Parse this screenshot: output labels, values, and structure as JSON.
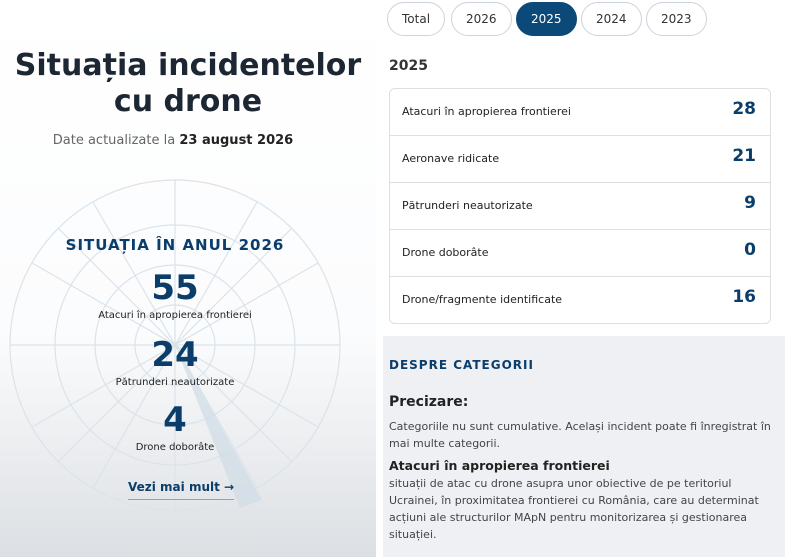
{
  "left": {
    "title": "Situația incidentelor cu drone",
    "updated_prefix": "Date actualizate la",
    "updated_date": "23 august 2026",
    "stats_heading": "SITUAȚIA ÎN ANUL 2026",
    "stats": [
      {
        "value": "55",
        "label": "Atacuri în apropierea frontierei"
      },
      {
        "value": "24",
        "label": "Pătrunderi neautorizate"
      },
      {
        "value": "4",
        "label": "Drone doborâte"
      }
    ],
    "more_link": "Vezi mai mult →"
  },
  "right": {
    "tabs": [
      "Total",
      "2026",
      "2025",
      "2024",
      "2023"
    ],
    "active_tab": "2025",
    "year_heading": "2025",
    "table": {
      "rows": [
        [
          "Atacuri în apropierea frontierei",
          "28"
        ],
        [
          "Aeronave ridicate",
          "21"
        ],
        [
          "Pătrunderi neautorizate",
          "9"
        ],
        [
          "Drone doborâte",
          "0"
        ],
        [
          "Drone/fragmente identificate",
          "16"
        ]
      ]
    },
    "about_heading": "DESPRE CATEGORII",
    "note_title": "Precizare:",
    "note_text": "Categoriile nu sunt cumulative. Același incident poate fi înregistrat în mai multe categorii.",
    "category_title": "Atacuri în apropierea frontierei",
    "category_text": "situații de atac cu drone asupra unor obiective de pe teritoriul Ucrainei, în proximitatea frontierei cu România, care au determinat acțiuni ale structurilor MApN pentru monitorizarea și gestionarea situației."
  }
}
